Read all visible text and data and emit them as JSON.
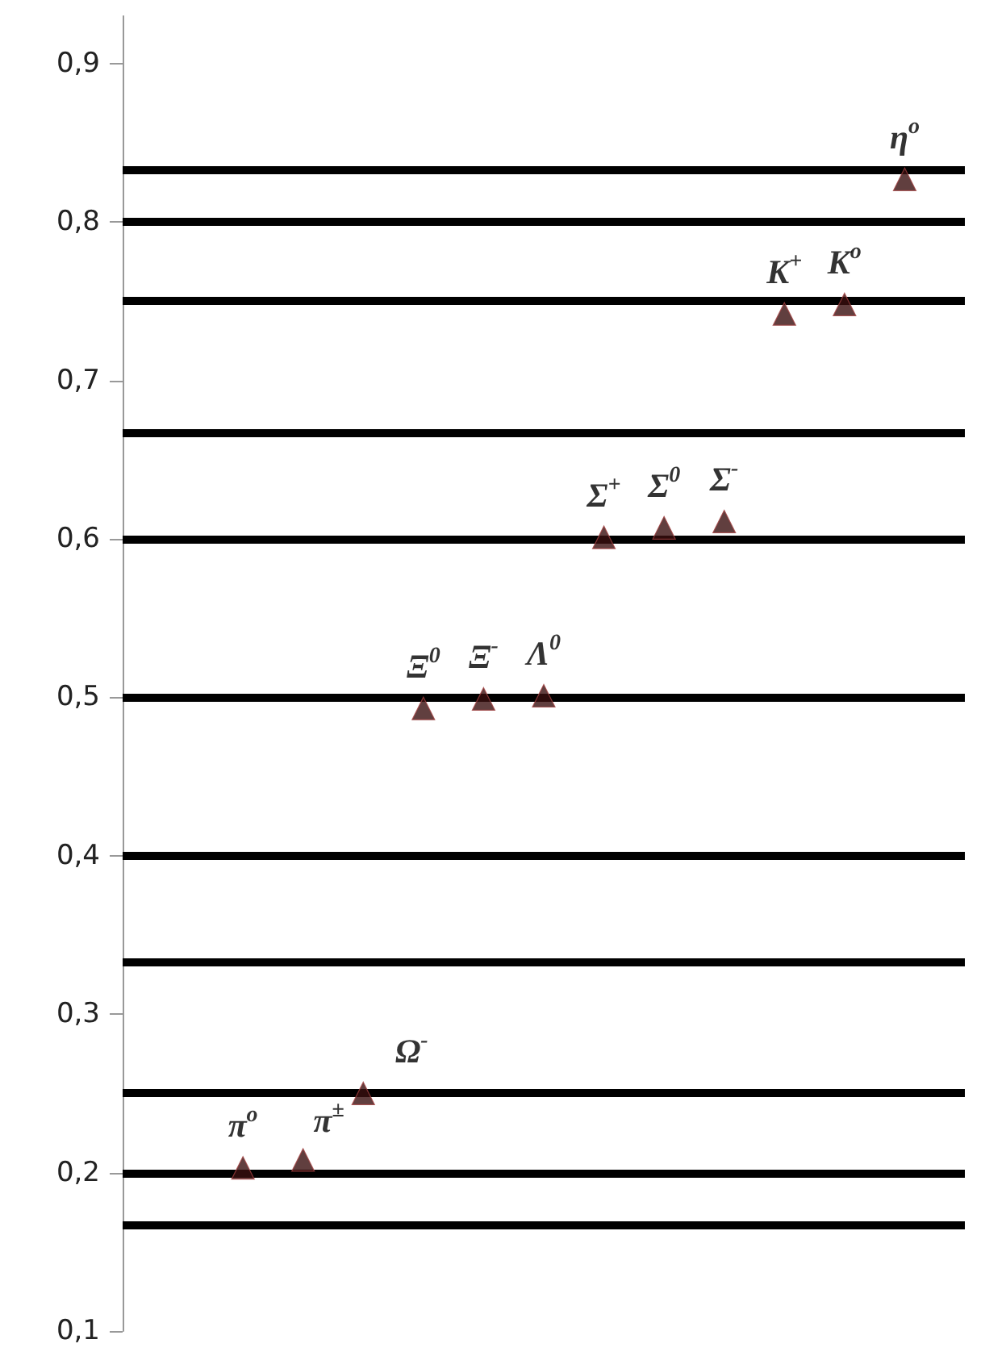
{
  "chart_data": {
    "type": "scatter",
    "marker": "triangle",
    "legend": false,
    "grid": false,
    "tick_labels": "y",
    "categories": [
      null,
      null,
      null,
      null,
      null,
      null,
      null,
      null,
      null,
      null,
      null,
      null,
      null,
      null,
      null
    ],
    "ylim": [
      0.1,
      0.93
    ],
    "yticks": [
      {
        "value": 0.1,
        "label": "0,1"
      },
      {
        "value": 0.2,
        "label": "0,2"
      },
      {
        "value": 0.3,
        "label": "0,3"
      },
      {
        "value": 0.4,
        "label": "0,4"
      },
      {
        "value": 0.5,
        "label": "0,5"
      },
      {
        "value": 0.6,
        "label": "0,6"
      },
      {
        "value": 0.7,
        "label": "0,7"
      },
      {
        "value": 0.8,
        "label": "0,8"
      },
      {
        "value": 0.9,
        "label": "0,9"
      }
    ],
    "series": [
      {
        "name": "π$^{o}$",
        "color": "#3a0f0f",
        "values": [
          null,
          null,
          0.203,
          null,
          null,
          null,
          null,
          null,
          null,
          null,
          null,
          null,
          null,
          null,
          null
        ]
      },
      {
        "name": "π$^{±}$",
        "color": "#3a0f0f",
        "values": [
          null,
          null,
          null,
          0.208,
          null,
          null,
          null,
          null,
          null,
          null,
          null,
          null,
          null,
          null,
          null
        ]
      },
      {
        "name": "Ω$^{-}$",
        "color": "#3a0f0f",
        "values": [
          null,
          null,
          null,
          null,
          0.25,
          null,
          null,
          null,
          null,
          null,
          null,
          null,
          null,
          null,
          null
        ]
      },
      {
        "name": "Ξ$^{0}$",
        "color": "#3a0f0f",
        "values": [
          null,
          null,
          null,
          null,
          null,
          0.493,
          null,
          null,
          null,
          null,
          null,
          null,
          null,
          null,
          null
        ]
      },
      {
        "name": "Ξ$^{-}$",
        "color": "#3a0f0f",
        "values": [
          null,
          null,
          null,
          null,
          null,
          null,
          0.499,
          null,
          null,
          null,
          null,
          null,
          null,
          null,
          null
        ]
      },
      {
        "name": "Λ$^{0}$",
        "color": "#3a0f0f",
        "values": [
          null,
          null,
          null,
          null,
          null,
          null,
          null,
          0.501,
          null,
          null,
          null,
          null,
          null,
          null,
          null
        ]
      },
      {
        "name": "Σ$^{+}$",
        "color": "#3a0f0f",
        "values": [
          null,
          null,
          null,
          null,
          null,
          null,
          null,
          null,
          0.601,
          null,
          null,
          null,
          null,
          null,
          null
        ]
      },
      {
        "name": "Σ$^{0}$",
        "color": "#3a0f0f",
        "values": [
          null,
          null,
          null,
          null,
          null,
          null,
          null,
          null,
          null,
          0.607,
          null,
          null,
          null,
          null,
          null
        ]
      },
      {
        "name": "Σ$^{-}$",
        "color": "#3a0f0f",
        "values": [
          null,
          null,
          null,
          null,
          null,
          null,
          null,
          null,
          null,
          null,
          0.611,
          null,
          null,
          null,
          null
        ]
      },
      {
        "name": "K$^{+}$",
        "color": "#3a0f0f",
        "values": [
          null,
          null,
          null,
          null,
          null,
          null,
          null,
          null,
          null,
          null,
          null,
          0.742,
          null,
          null,
          null
        ]
      },
      {
        "name": "K$^{o}$",
        "color": "#3a0f0f",
        "values": [
          null,
          null,
          null,
          null,
          null,
          null,
          null,
          null,
          null,
          null,
          null,
          null,
          0.748,
          null,
          null
        ]
      },
      {
        "name": "η$^{o}$",
        "color": "#3a0f0f",
        "values": [
          null,
          null,
          null,
          null,
          null,
          null,
          null,
          null,
          null,
          null,
          null,
          null,
          null,
          0.827,
          null
        ]
      }
    ],
    "ref_lines": [
      {
        "axis": "y",
        "value": 0.8333,
        "color": "#000000"
      },
      {
        "axis": "y",
        "value": 0.8,
        "color": "#000000"
      },
      {
        "axis": "y",
        "value": 0.75,
        "color": "#000000"
      },
      {
        "axis": "y",
        "value": 0.6667,
        "color": "#000000"
      },
      {
        "axis": "y",
        "value": 0.6,
        "color": "#000000"
      },
      {
        "axis": "y",
        "value": 0.5,
        "color": "#000000"
      },
      {
        "axis": "y",
        "value": 0.4,
        "color": "#000000"
      },
      {
        "axis": "y",
        "value": 0.3333,
        "color": "#000000"
      },
      {
        "axis": "y",
        "value": 0.25,
        "color": "#000000"
      },
      {
        "axis": "y",
        "value": 0.2,
        "color": "#000000"
      },
      {
        "axis": "y",
        "value": 0.1667,
        "color": "#000000"
      }
    ]
  }
}
